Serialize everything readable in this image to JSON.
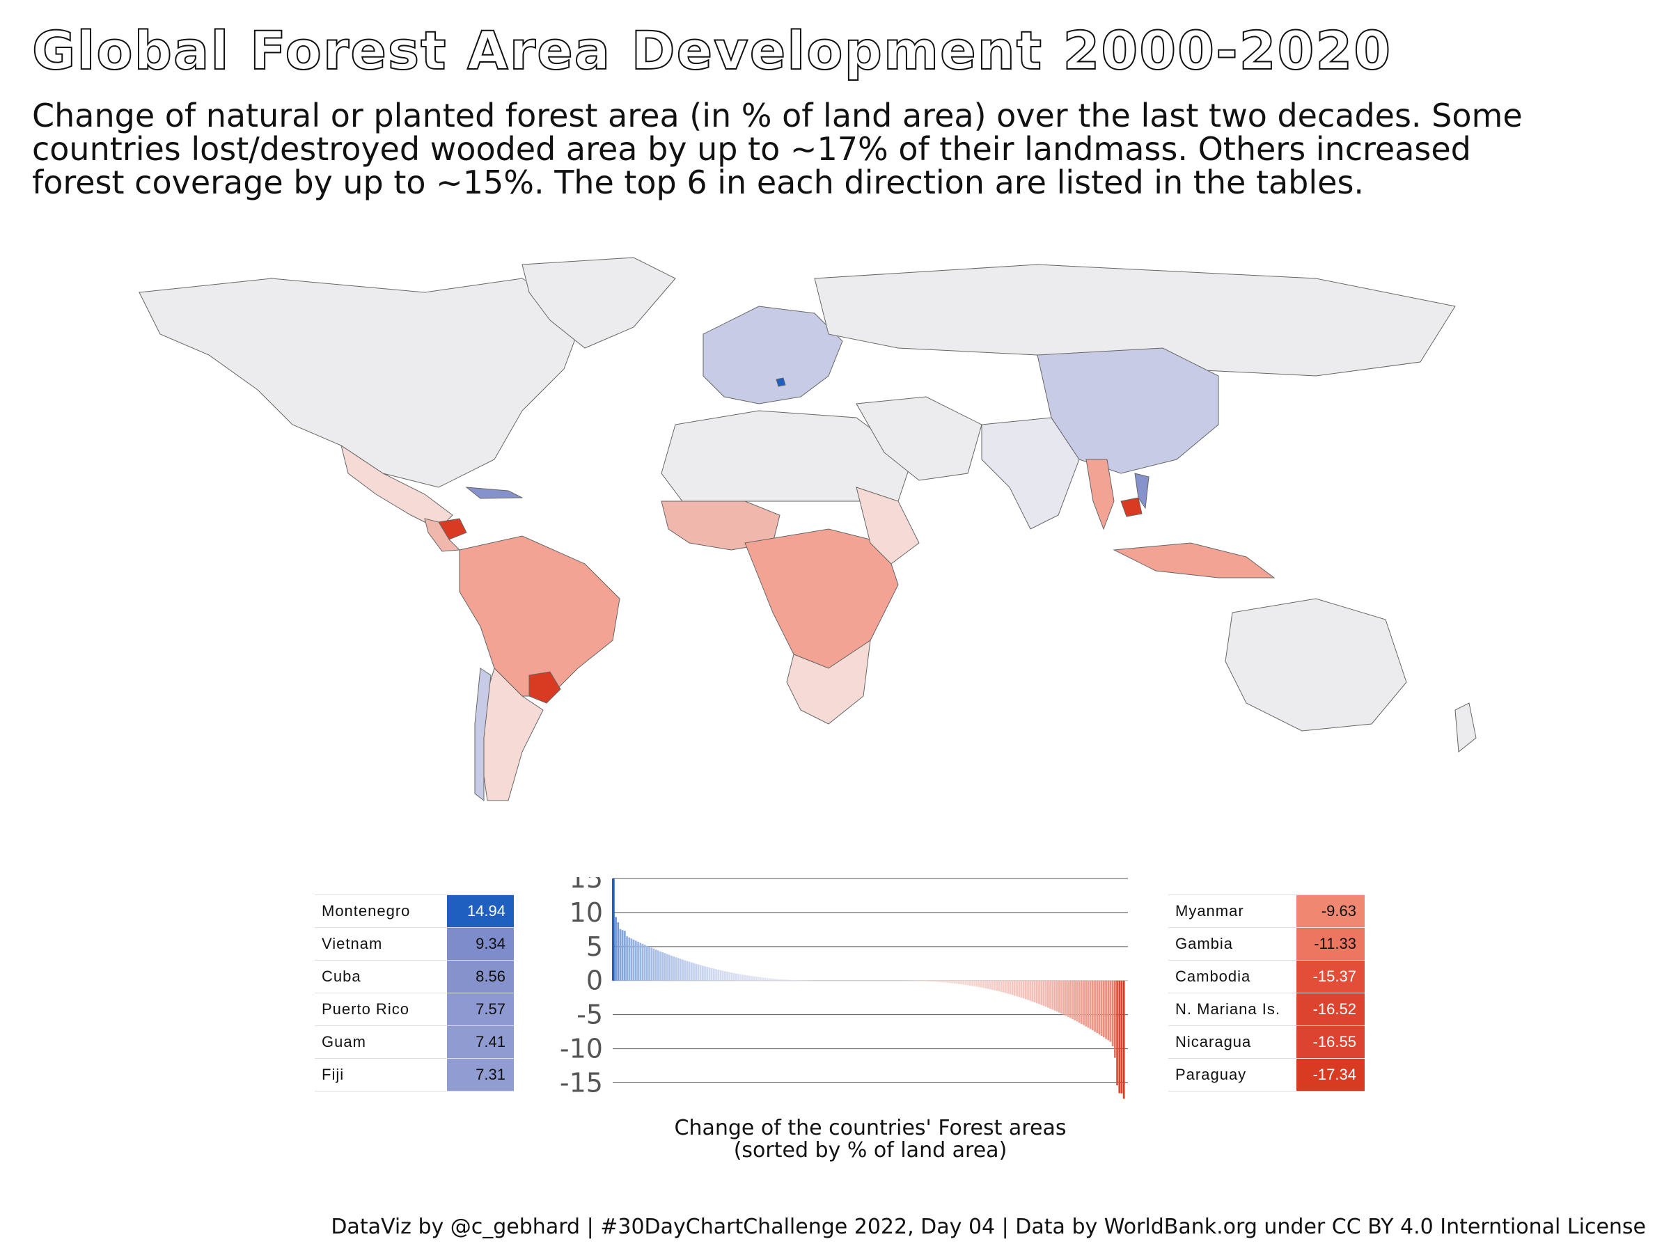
{
  "title": "Global Forest Area Development 2000-2020",
  "subtitle_lines": [
    "Change of natural or planted forest area (in % of land area) over the last two decades. Some",
    "countries lost/destroyed wooded area by up to ~17% of their landmass. Others increased",
    "forest coverage by up to ~15%. The top 6 in each direction are listed in the tables."
  ],
  "colors": {
    "positive_max": "#1f5fbf",
    "positive_mid": "#8592cc",
    "neutral": "#ebebed",
    "negative_mid": "#f2a393",
    "negative_max": "#d83a22"
  },
  "tables": {
    "increase": [
      {
        "country": "Montenegro",
        "value": "14.94"
      },
      {
        "country": "Vietnam",
        "value": "9.34"
      },
      {
        "country": "Cuba",
        "value": "8.56"
      },
      {
        "country": "Puerto Rico",
        "value": "7.57"
      },
      {
        "country": "Guam",
        "value": "7.41"
      },
      {
        "country": "Fiji",
        "value": "7.31"
      }
    ],
    "decrease": [
      {
        "country": "Myanmar",
        "value": "-9.63"
      },
      {
        "country": "Gambia",
        "value": "-11.33"
      },
      {
        "country": "Cambodia",
        "value": "-15.37"
      },
      {
        "country": "N. Mariana Is.",
        "value": "-16.52"
      },
      {
        "country": "Nicaragua",
        "value": "-16.55"
      },
      {
        "country": "Paraguay",
        "value": "-17.34"
      }
    ]
  },
  "chart_data": {
    "type": "bar",
    "ylim": [
      -17.5,
      15.2
    ],
    "yticks": [
      15,
      10,
      5,
      0,
      -5,
      -10,
      -15
    ],
    "grid": true,
    "n_countries": 230,
    "top_values": [
      14.94,
      9.34,
      8.56,
      7.57,
      7.41,
      7.31
    ],
    "bottom_values": [
      -9.63,
      -11.33,
      -15.37,
      -16.52,
      -16.55,
      -17.34
    ]
  },
  "xlabel_lines": [
    "Change of the countries' Forest areas",
    "(sorted by % of land area)"
  ],
  "caption": "DataViz by @c_gebhard |  #30DayChartChallenge 2022, Day 04 |  Data by WorldBank.org under CC BY 4.0 Interntional License"
}
